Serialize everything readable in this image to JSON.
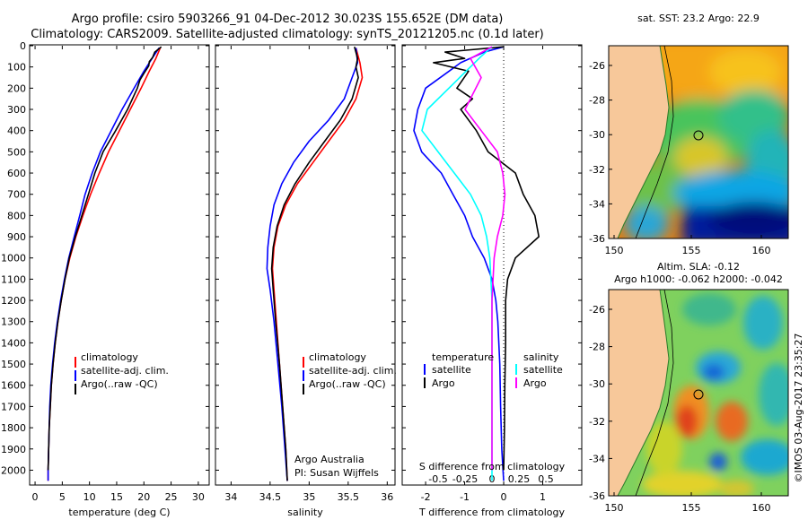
{
  "header": {
    "title_line1": "Argo profile: csiro 5903266_91 04-Dec-2012 30.023S 155.652E (DM data)",
    "title_line2": "Climatology: CARS2009. Satellite-adjusted climatology: synTS_20121205.nc (0.1d later)"
  },
  "colors": {
    "climatology": "#ff0000",
    "satellite": "#0000ff",
    "argo": "#000000",
    "argo_salinity": "#ff00ff",
    "satellite_salinity": "#00ffff",
    "land": "#f7c89a"
  },
  "chart_data": [
    {
      "type": "line",
      "id": "temperature",
      "xlabel": "temperature (deg C)",
      "ylabel": "",
      "xlim": [
        -1,
        32
      ],
      "ylim": [
        0,
        2070
      ],
      "x_ticks": [
        0,
        5,
        10,
        15,
        20,
        25,
        30
      ],
      "y_ticks": [
        0,
        100,
        200,
        300,
        400,
        500,
        600,
        700,
        800,
        900,
        1000,
        1100,
        1200,
        1300,
        1400,
        1500,
        1600,
        1700,
        1800,
        1900,
        2000
      ],
      "legend": [
        "climatology",
        "satellite-adj. clim.",
        "Argo(..raw -QC)"
      ],
      "series": [
        {
          "name": "climatology",
          "color": "#ff0000",
          "points": [
            [
              23.0,
              10
            ],
            [
              22.2,
              60
            ],
            [
              21.0,
              120
            ],
            [
              19.5,
              200
            ],
            [
              17.5,
              300
            ],
            [
              15.5,
              400
            ],
            [
              13.5,
              500
            ],
            [
              11.8,
              600
            ],
            [
              10.2,
              700
            ],
            [
              8.8,
              800
            ],
            [
              7.5,
              900
            ],
            [
              6.4,
              1000
            ],
            [
              5.5,
              1100
            ],
            [
              4.8,
              1200
            ],
            [
              4.2,
              1300
            ],
            [
              3.7,
              1400
            ],
            [
              3.3,
              1500
            ],
            [
              3.0,
              1600
            ],
            [
              2.8,
              1700
            ],
            [
              2.6,
              1800
            ],
            [
              2.5,
              1900
            ],
            [
              2.4,
              2000
            ],
            [
              2.4,
              2050
            ]
          ]
        },
        {
          "name": "satellite",
          "color": "#0000ff",
          "points": [
            [
              22.8,
              10
            ],
            [
              21.5,
              60
            ],
            [
              20.0,
              120
            ],
            [
              18.2,
              200
            ],
            [
              16.0,
              300
            ],
            [
              14.0,
              400
            ],
            [
              12.0,
              500
            ],
            [
              10.5,
              600
            ],
            [
              9.2,
              700
            ],
            [
              8.2,
              800
            ],
            [
              7.2,
              900
            ],
            [
              6.2,
              1000
            ],
            [
              5.4,
              1100
            ],
            [
              4.7,
              1200
            ],
            [
              4.1,
              1300
            ],
            [
              3.6,
              1400
            ],
            [
              3.2,
              1500
            ],
            [
              2.9,
              1600
            ],
            [
              2.7,
              1700
            ],
            [
              2.6,
              1800
            ],
            [
              2.5,
              1900
            ],
            [
              2.4,
              2000
            ],
            [
              2.4,
              2050
            ]
          ]
        },
        {
          "name": "argo",
          "color": "#000000",
          "points": [
            [
              23.2,
              5
            ],
            [
              22.0,
              30
            ],
            [
              21.6,
              55
            ],
            [
              21.0,
              75
            ],
            [
              20.9,
              95
            ],
            [
              20.0,
              130
            ],
            [
              19.3,
              160
            ],
            [
              18.8,
              200
            ],
            [
              17.0,
              300
            ],
            [
              14.8,
              400
            ],
            [
              12.5,
              500
            ],
            [
              11.0,
              600
            ],
            [
              9.8,
              700
            ],
            [
              8.6,
              800
            ],
            [
              7.4,
              900
            ],
            [
              6.3,
              1000
            ],
            [
              5.5,
              1100
            ],
            [
              4.8,
              1200
            ],
            [
              4.2,
              1300
            ],
            [
              3.7,
              1400
            ],
            [
              3.3,
              1500
            ],
            [
              3.0,
              1600
            ],
            [
              2.8,
              1700
            ],
            [
              2.6,
              1800
            ],
            [
              2.5,
              1900
            ],
            [
              2.4,
              2000
            ]
          ]
        }
      ]
    },
    {
      "type": "line",
      "id": "salinity",
      "xlabel": "salinity",
      "xlim": [
        33.8,
        36.1
      ],
      "ylim": [
        0,
        2070
      ],
      "x_ticks": [
        34,
        34.5,
        35,
        35.5,
        36
      ],
      "legend": [
        "climatology",
        "satellite-adj. clim.",
        "Argo(..raw -QC)"
      ],
      "annotation": [
        "Argo Australia",
        "PI: Susan Wijffels"
      ],
      "series": [
        {
          "name": "climatology",
          "color": "#ff0000",
          "points": [
            [
              35.6,
              10
            ],
            [
              35.65,
              80
            ],
            [
              35.68,
              150
            ],
            [
              35.6,
              250
            ],
            [
              35.45,
              350
            ],
            [
              35.25,
              450
            ],
            [
              35.05,
              550
            ],
            [
              34.85,
              650
            ],
            [
              34.7,
              750
            ],
            [
              34.6,
              850
            ],
            [
              34.55,
              950
            ],
            [
              34.53,
              1050
            ],
            [
              34.55,
              1150
            ],
            [
              34.58,
              1300
            ],
            [
              34.62,
              1500
            ],
            [
              34.66,
              1700
            ],
            [
              34.7,
              1900
            ],
            [
              34.72,
              2050
            ]
          ]
        },
        {
          "name": "satellite",
          "color": "#0000ff",
          "points": [
            [
              35.6,
              10
            ],
            [
              35.62,
              80
            ],
            [
              35.55,
              150
            ],
            [
              35.45,
              250
            ],
            [
              35.25,
              350
            ],
            [
              35.0,
              450
            ],
            [
              34.8,
              550
            ],
            [
              34.65,
              650
            ],
            [
              34.55,
              750
            ],
            [
              34.5,
              850
            ],
            [
              34.47,
              950
            ],
            [
              34.46,
              1050
            ],
            [
              34.5,
              1150
            ],
            [
              34.55,
              1300
            ],
            [
              34.6,
              1500
            ],
            [
              34.65,
              1700
            ],
            [
              34.69,
              1900
            ],
            [
              34.72,
              2050
            ]
          ]
        },
        {
          "name": "argo",
          "color": "#000000",
          "points": [
            [
              35.58,
              5
            ],
            [
              35.62,
              60
            ],
            [
              35.6,
              100
            ],
            [
              35.63,
              150
            ],
            [
              35.55,
              250
            ],
            [
              35.4,
              350
            ],
            [
              35.2,
              450
            ],
            [
              35.0,
              550
            ],
            [
              34.82,
              650
            ],
            [
              34.68,
              750
            ],
            [
              34.59,
              850
            ],
            [
              34.54,
              950
            ],
            [
              34.52,
              1050
            ],
            [
              34.54,
              1150
            ],
            [
              34.57,
              1300
            ],
            [
              34.62,
              1500
            ],
            [
              34.66,
              1700
            ],
            [
              34.7,
              1900
            ],
            [
              34.72,
              2050
            ]
          ]
        }
      ]
    },
    {
      "type": "line",
      "id": "difference",
      "xlabel": "T difference from climatology",
      "xlabel_top": "S difference from climatology",
      "xlim": [
        -2.6,
        2.0
      ],
      "ylim": [
        0,
        2070
      ],
      "x_ticks": [
        -2,
        -1,
        0,
        1
      ],
      "s_ticks": [
        "-0.5",
        "-0.25",
        "0",
        "0.25",
        "0.5"
      ],
      "s_tick_values": [
        -0.5,
        -0.25,
        0,
        0.25,
        0.5
      ],
      "legend_temperature_title": "temperature",
      "legend_salinity_title": "salinity",
      "legend": [
        "satellite",
        "Argo",
        "satellite",
        "Argo"
      ],
      "series": [
        {
          "name": "T satellite",
          "color": "#0000ff",
          "points": [
            [
              0,
              5
            ],
            [
              -0.5,
              30
            ],
            [
              -1.1,
              80
            ],
            [
              -2.0,
              200
            ],
            [
              -2.2,
              300
            ],
            [
              -2.3,
              400
            ],
            [
              -2.1,
              500
            ],
            [
              -1.6,
              600
            ],
            [
              -1.3,
              700
            ],
            [
              -1.0,
              800
            ],
            [
              -0.8,
              900
            ],
            [
              -0.5,
              1000
            ],
            [
              -0.3,
              1100
            ],
            [
              -0.2,
              1200
            ],
            [
              -0.15,
              1300
            ],
            [
              -0.1,
              1500
            ],
            [
              -0.08,
              1700
            ],
            [
              -0.05,
              1900
            ],
            [
              0,
              2050
            ]
          ]
        },
        {
          "name": "T Argo",
          "color": "#000000",
          "points": [
            [
              0,
              5
            ],
            [
              -1.5,
              30
            ],
            [
              -1.0,
              60
            ],
            [
              -1.8,
              80
            ],
            [
              -0.9,
              120
            ],
            [
              -1.2,
              200
            ],
            [
              -0.8,
              250
            ],
            [
              -1.1,
              300
            ],
            [
              -0.7,
              400
            ],
            [
              -0.4,
              500
            ],
            [
              0.3,
              600
            ],
            [
              0.5,
              700
            ],
            [
              0.8,
              800
            ],
            [
              0.9,
              900
            ],
            [
              0.3,
              1000
            ],
            [
              0.1,
              1100
            ],
            [
              0.05,
              1200
            ],
            [
              0.05,
              1400
            ],
            [
              0.03,
              1600
            ],
            [
              0.02,
              1800
            ],
            [
              0.0,
              2000
            ]
          ]
        },
        {
          "name": "S satellite",
          "color": "#00ffff",
          "points": [
            [
              0,
              5
            ],
            [
              -0.1,
              50
            ],
            [
              -0.3,
              150
            ],
            [
              -0.6,
              300
            ],
            [
              -0.65,
              400
            ],
            [
              -0.5,
              500
            ],
            [
              -0.35,
              600
            ],
            [
              -0.2,
              700
            ],
            [
              -0.1,
              800
            ],
            [
              -0.05,
              900
            ],
            [
              -0.02,
              1000
            ],
            [
              0,
              1200
            ],
            [
              0,
              1500
            ],
            [
              0,
              1800
            ],
            [
              0,
              2050
            ]
          ]
        },
        {
          "name": "S Argo",
          "color": "#ff00ff",
          "points": [
            [
              0,
              5
            ],
            [
              -0.2,
              60
            ],
            [
              -0.1,
              150
            ],
            [
              -0.25,
              300
            ],
            [
              -0.1,
              400
            ],
            [
              0.05,
              500
            ],
            [
              0.1,
              600
            ],
            [
              0.12,
              700
            ],
            [
              0.1,
              800
            ],
            [
              0.05,
              900
            ],
            [
              0.02,
              1000
            ],
            [
              0,
              1200
            ],
            [
              0,
              1500
            ],
            [
              0,
              1800
            ],
            [
              0,
              2000
            ]
          ]
        }
      ]
    }
  ],
  "maps": [
    {
      "id": "sst-map",
      "title": "sat. SST: 23.2 Argo: 22.9",
      "x_ticks": [
        "150",
        "155",
        "160"
      ],
      "y_ticks": [
        "-26",
        "-28",
        "-30",
        "-32",
        "-34",
        "-36"
      ]
    },
    {
      "id": "sla-map",
      "title_line1": "Altim. SLA: -0.12",
      "title_line2": "Argo h1000: -0.062 h2000: -0.042",
      "x_ticks": [
        "150",
        "155",
        "160"
      ],
      "y_ticks": [
        "-26",
        "-28",
        "-30",
        "-32",
        "-34",
        "-36"
      ]
    }
  ],
  "stamp": "©IMOS 03-Aug-2017 23:35:27"
}
